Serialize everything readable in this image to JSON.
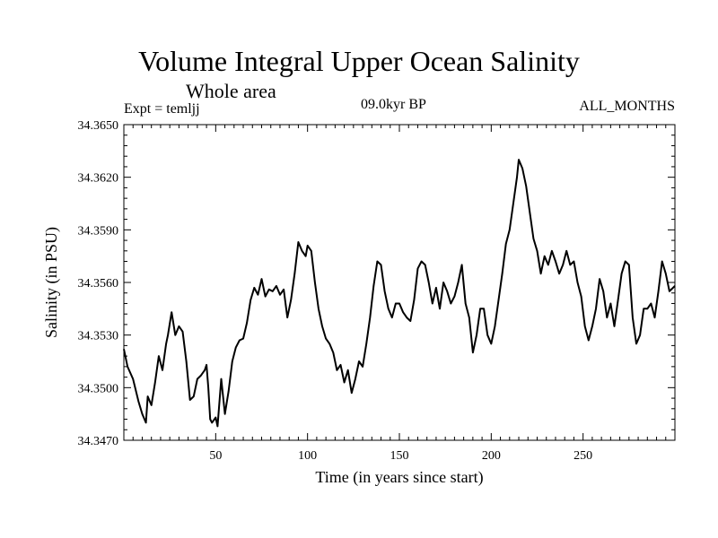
{
  "header": {
    "title": "Volume Integral Upper Ocean Salinity",
    "subtitle": "Whole area",
    "experiment": "Expt = temljj",
    "period": "09.0kyr BP",
    "months": "ALL_MONTHS"
  },
  "chart_data": {
    "type": "line",
    "title": "Volume Integral Upper Ocean Salinity",
    "xlabel": "Time (in years since start)",
    "ylabel": "Salinity (in PSU)",
    "xlim": [
      0,
      300
    ],
    "ylim": [
      34.347,
      34.365
    ],
    "xticks": [
      50,
      100,
      150,
      200,
      250
    ],
    "yticks": [
      34.347,
      34.35,
      34.353,
      34.356,
      34.359,
      34.362,
      34.365
    ],
    "ytick_labels": [
      "34.3470",
      "34.3500",
      "34.3530",
      "34.3560",
      "34.3590",
      "34.3620",
      "34.3650"
    ],
    "grid": false,
    "series": [
      {
        "name": "Salinity",
        "x": [
          0,
          2,
          5,
          8,
          10,
          12,
          13,
          15,
          17,
          19,
          21,
          23,
          24,
          26,
          28,
          30,
          32,
          34,
          36,
          38,
          40,
          42,
          44,
          45,
          46,
          47,
          48,
          50,
          51,
          53,
          55,
          57,
          59,
          61,
          63,
          65,
          67,
          69,
          71,
          73,
          75,
          77,
          79,
          81,
          83,
          85,
          87,
          89,
          91,
          93,
          95,
          97,
          99,
          100,
          102,
          104,
          106,
          108,
          110,
          112,
          114,
          116,
          118,
          120,
          122,
          124,
          126,
          128,
          130,
          132,
          134,
          136,
          138,
          140,
          142,
          144,
          146,
          148,
          150,
          152,
          154,
          156,
          158,
          160,
          162,
          164,
          166,
          168,
          170,
          172,
          174,
          176,
          178,
          180,
          182,
          184,
          186,
          188,
          190,
          192,
          194,
          196,
          198,
          200,
          202,
          204,
          206,
          208,
          210,
          212,
          214,
          215,
          217,
          219,
          221,
          223,
          225,
          227,
          229,
          231,
          233,
          235,
          237,
          239,
          241,
          243,
          245,
          247,
          249,
          251,
          253,
          255,
          257,
          259,
          261,
          263,
          265,
          267,
          269,
          271,
          273,
          275,
          277,
          279,
          281,
          283,
          285,
          287,
          289,
          291,
          293,
          295,
          297,
          300
        ],
        "values": [
          34.3522,
          34.3512,
          34.3505,
          34.3492,
          34.3485,
          34.348,
          34.3495,
          34.349,
          34.3503,
          34.3518,
          34.351,
          34.3525,
          34.353,
          34.3543,
          34.353,
          34.3535,
          34.3532,
          34.3515,
          34.3493,
          34.3495,
          34.3505,
          34.3507,
          34.351,
          34.3513,
          34.35,
          34.3482,
          34.348,
          34.3483,
          34.3478,
          34.3505,
          34.3485,
          34.3498,
          34.3515,
          34.3523,
          34.3527,
          34.3528,
          34.3537,
          34.355,
          34.3557,
          34.3553,
          34.3562,
          34.3552,
          34.3556,
          34.3555,
          34.3558,
          34.3553,
          34.3556,
          34.354,
          34.355,
          34.3565,
          34.3583,
          34.3578,
          34.3575,
          34.3581,
          34.3578,
          34.356,
          34.3545,
          34.3535,
          34.3528,
          34.3525,
          34.352,
          34.351,
          34.3513,
          34.3503,
          34.351,
          34.3497,
          34.3505,
          34.3515,
          34.3512,
          34.3525,
          34.354,
          34.3558,
          34.3572,
          34.357,
          34.3555,
          34.3545,
          34.354,
          34.3548,
          34.3548,
          34.3543,
          34.354,
          34.3538,
          34.355,
          34.3568,
          34.3572,
          34.357,
          34.356,
          34.3548,
          34.3557,
          34.3545,
          34.356,
          34.3555,
          34.3548,
          34.3552,
          34.356,
          34.357,
          34.3548,
          34.354,
          34.352,
          34.353,
          34.3545,
          34.3545,
          34.353,
          34.3525,
          34.3535,
          34.355,
          34.3565,
          34.3582,
          34.359,
          34.3605,
          34.362,
          34.363,
          34.3625,
          34.3615,
          34.36,
          34.3585,
          34.3578,
          34.3565,
          34.3575,
          34.357,
          34.3578,
          34.3572,
          34.3565,
          34.357,
          34.3578,
          34.357,
          34.3572,
          34.356,
          34.3552,
          34.3535,
          34.3527,
          34.3535,
          34.3545,
          34.3562,
          34.3555,
          34.354,
          34.3548,
          34.3535,
          34.355,
          34.3565,
          34.3572,
          34.357,
          34.354,
          34.3525,
          34.353,
          34.3545,
          34.3545,
          34.3548,
          34.354,
          34.3555,
          34.3572,
          34.3565,
          34.3555,
          34.3558
        ]
      }
    ]
  }
}
